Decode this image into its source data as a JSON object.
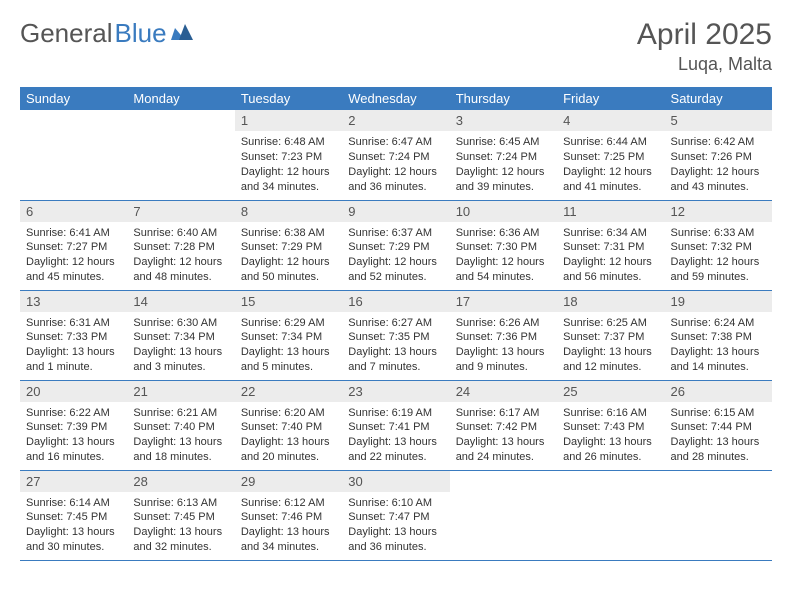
{
  "logo": {
    "text1": "General",
    "text2": "Blue"
  },
  "title": "April 2025",
  "location": "Luqa, Malta",
  "colors": {
    "header_bg": "#3a7bbf",
    "header_text": "#ffffff",
    "daynum_bg": "#ececec",
    "border": "#3a7bbf",
    "logo_gray": "#555555",
    "logo_blue": "#3a7bbf"
  },
  "weekdays": [
    "Sunday",
    "Monday",
    "Tuesday",
    "Wednesday",
    "Thursday",
    "Friday",
    "Saturday"
  ],
  "weeks": [
    [
      null,
      null,
      {
        "n": "1",
        "sr": "Sunrise: 6:48 AM",
        "ss": "Sunset: 7:23 PM",
        "dl": "Daylight: 12 hours and 34 minutes."
      },
      {
        "n": "2",
        "sr": "Sunrise: 6:47 AM",
        "ss": "Sunset: 7:24 PM",
        "dl": "Daylight: 12 hours and 36 minutes."
      },
      {
        "n": "3",
        "sr": "Sunrise: 6:45 AM",
        "ss": "Sunset: 7:24 PM",
        "dl": "Daylight: 12 hours and 39 minutes."
      },
      {
        "n": "4",
        "sr": "Sunrise: 6:44 AM",
        "ss": "Sunset: 7:25 PM",
        "dl": "Daylight: 12 hours and 41 minutes."
      },
      {
        "n": "5",
        "sr": "Sunrise: 6:42 AM",
        "ss": "Sunset: 7:26 PM",
        "dl": "Daylight: 12 hours and 43 minutes."
      }
    ],
    [
      {
        "n": "6",
        "sr": "Sunrise: 6:41 AM",
        "ss": "Sunset: 7:27 PM",
        "dl": "Daylight: 12 hours and 45 minutes."
      },
      {
        "n": "7",
        "sr": "Sunrise: 6:40 AM",
        "ss": "Sunset: 7:28 PM",
        "dl": "Daylight: 12 hours and 48 minutes."
      },
      {
        "n": "8",
        "sr": "Sunrise: 6:38 AM",
        "ss": "Sunset: 7:29 PM",
        "dl": "Daylight: 12 hours and 50 minutes."
      },
      {
        "n": "9",
        "sr": "Sunrise: 6:37 AM",
        "ss": "Sunset: 7:29 PM",
        "dl": "Daylight: 12 hours and 52 minutes."
      },
      {
        "n": "10",
        "sr": "Sunrise: 6:36 AM",
        "ss": "Sunset: 7:30 PM",
        "dl": "Daylight: 12 hours and 54 minutes."
      },
      {
        "n": "11",
        "sr": "Sunrise: 6:34 AM",
        "ss": "Sunset: 7:31 PM",
        "dl": "Daylight: 12 hours and 56 minutes."
      },
      {
        "n": "12",
        "sr": "Sunrise: 6:33 AM",
        "ss": "Sunset: 7:32 PM",
        "dl": "Daylight: 12 hours and 59 minutes."
      }
    ],
    [
      {
        "n": "13",
        "sr": "Sunrise: 6:31 AM",
        "ss": "Sunset: 7:33 PM",
        "dl": "Daylight: 13 hours and 1 minute."
      },
      {
        "n": "14",
        "sr": "Sunrise: 6:30 AM",
        "ss": "Sunset: 7:34 PM",
        "dl": "Daylight: 13 hours and 3 minutes."
      },
      {
        "n": "15",
        "sr": "Sunrise: 6:29 AM",
        "ss": "Sunset: 7:34 PM",
        "dl": "Daylight: 13 hours and 5 minutes."
      },
      {
        "n": "16",
        "sr": "Sunrise: 6:27 AM",
        "ss": "Sunset: 7:35 PM",
        "dl": "Daylight: 13 hours and 7 minutes."
      },
      {
        "n": "17",
        "sr": "Sunrise: 6:26 AM",
        "ss": "Sunset: 7:36 PM",
        "dl": "Daylight: 13 hours and 9 minutes."
      },
      {
        "n": "18",
        "sr": "Sunrise: 6:25 AM",
        "ss": "Sunset: 7:37 PM",
        "dl": "Daylight: 13 hours and 12 minutes."
      },
      {
        "n": "19",
        "sr": "Sunrise: 6:24 AM",
        "ss": "Sunset: 7:38 PM",
        "dl": "Daylight: 13 hours and 14 minutes."
      }
    ],
    [
      {
        "n": "20",
        "sr": "Sunrise: 6:22 AM",
        "ss": "Sunset: 7:39 PM",
        "dl": "Daylight: 13 hours and 16 minutes."
      },
      {
        "n": "21",
        "sr": "Sunrise: 6:21 AM",
        "ss": "Sunset: 7:40 PM",
        "dl": "Daylight: 13 hours and 18 minutes."
      },
      {
        "n": "22",
        "sr": "Sunrise: 6:20 AM",
        "ss": "Sunset: 7:40 PM",
        "dl": "Daylight: 13 hours and 20 minutes."
      },
      {
        "n": "23",
        "sr": "Sunrise: 6:19 AM",
        "ss": "Sunset: 7:41 PM",
        "dl": "Daylight: 13 hours and 22 minutes."
      },
      {
        "n": "24",
        "sr": "Sunrise: 6:17 AM",
        "ss": "Sunset: 7:42 PM",
        "dl": "Daylight: 13 hours and 24 minutes."
      },
      {
        "n": "25",
        "sr": "Sunrise: 6:16 AM",
        "ss": "Sunset: 7:43 PM",
        "dl": "Daylight: 13 hours and 26 minutes."
      },
      {
        "n": "26",
        "sr": "Sunrise: 6:15 AM",
        "ss": "Sunset: 7:44 PM",
        "dl": "Daylight: 13 hours and 28 minutes."
      }
    ],
    [
      {
        "n": "27",
        "sr": "Sunrise: 6:14 AM",
        "ss": "Sunset: 7:45 PM",
        "dl": "Daylight: 13 hours and 30 minutes."
      },
      {
        "n": "28",
        "sr": "Sunrise: 6:13 AM",
        "ss": "Sunset: 7:45 PM",
        "dl": "Daylight: 13 hours and 32 minutes."
      },
      {
        "n": "29",
        "sr": "Sunrise: 6:12 AM",
        "ss": "Sunset: 7:46 PM",
        "dl": "Daylight: 13 hours and 34 minutes."
      },
      {
        "n": "30",
        "sr": "Sunrise: 6:10 AM",
        "ss": "Sunset: 7:47 PM",
        "dl": "Daylight: 13 hours and 36 minutes."
      },
      null,
      null,
      null
    ]
  ]
}
